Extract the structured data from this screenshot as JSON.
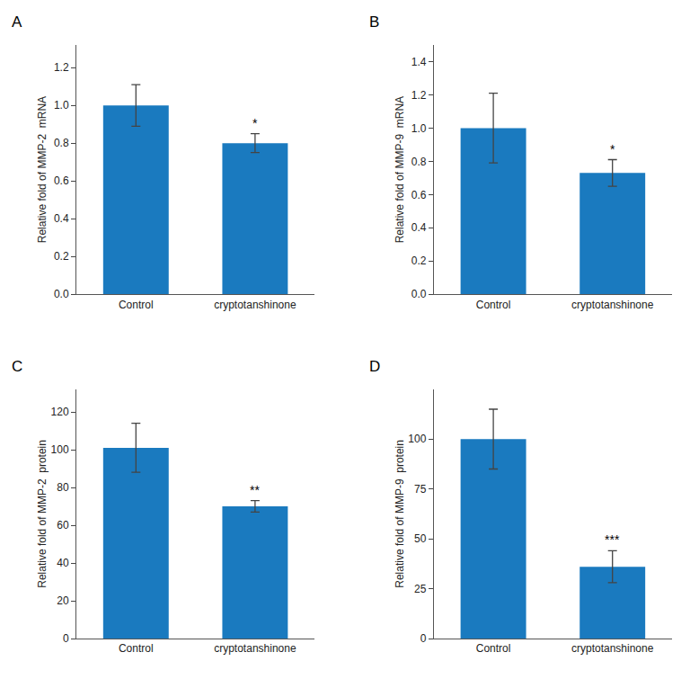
{
  "chart_data": [
    {
      "type": "bar",
      "title": "A",
      "ylabel": "Relative fold of MMP-2  mRNA",
      "categories": [
        "Control",
        "cryptotanshinone"
      ],
      "values": [
        1.0,
        0.8
      ],
      "errors": [
        0.11,
        0.05
      ],
      "color": "#1a7abf",
      "ylim": [
        0,
        1.32
      ],
      "yticks": [
        {
          "value": 0,
          "label": "0.0"
        },
        0.2,
        0.4,
        0.6,
        0.8,
        {
          "value": 1.0,
          "label": "1.0"
        },
        1.2
      ],
      "annotations": [
        {
          "x": "cryptotanshinone",
          "text": "*"
        }
      ],
      "grid": false
    },
    {
      "type": "bar",
      "title": "B",
      "ylabel": "Relative fold of MMP-9  mRNA",
      "categories": [
        "Control",
        "cryptotanshinone"
      ],
      "values": [
        1.0,
        0.73
      ],
      "errors": [
        0.21,
        0.08
      ],
      "color": "#1a7abf",
      "ylim": [
        0,
        1.5
      ],
      "yticks": [
        {
          "value": 0,
          "label": "0.0"
        },
        0.2,
        0.4,
        0.6,
        0.8,
        {
          "value": 1.0,
          "label": "1.0"
        },
        1.2,
        1.4
      ],
      "annotations": [
        {
          "x": "cryptotanshinone",
          "text": "*"
        }
      ],
      "grid": false
    },
    {
      "type": "bar",
      "title": "C",
      "ylabel": "Relative fold of MMP-2  protein",
      "categories": [
        "Control",
        "cryptotanshinone"
      ],
      "values": [
        101,
        70
      ],
      "errors": [
        13,
        3
      ],
      "color": "#1a7abf",
      "ylim": [
        0,
        132
      ],
      "yticks": [
        0,
        20,
        40,
        60,
        80,
        100,
        120
      ],
      "annotations": [
        {
          "x": "cryptotanshinone",
          "text": "**"
        }
      ],
      "grid": false
    },
    {
      "type": "bar",
      "title": "D",
      "ylabel": "Relative fold of MMP-9  protein",
      "categories": [
        "Control",
        "cryptotanshinone"
      ],
      "values": [
        100,
        36
      ],
      "errors": [
        15,
        8
      ],
      "color": "#1a7abf",
      "ylim": [
        0,
        125
      ],
      "yticks": [
        0,
        25,
        50,
        75,
        100
      ],
      "annotations": [
        {
          "x": "cryptotanshinone",
          "text": "***"
        }
      ],
      "grid": false
    }
  ]
}
